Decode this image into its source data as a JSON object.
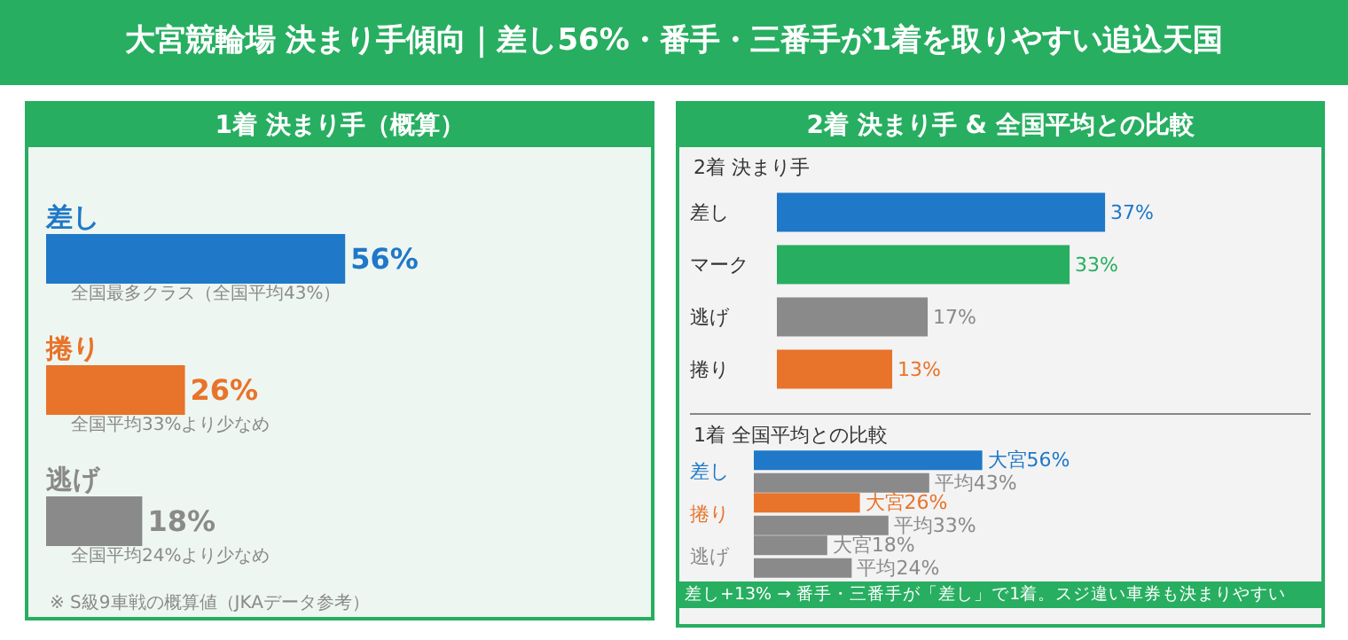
{
  "chart_data": [
    {
      "type": "bar",
      "orientation": "horizontal",
      "title": "大宮競輪場 決まり手傾向｜差し56%・番手・三番手が1着を取りやすい追込天国",
      "subtitle": "1着 決まり手（概算）",
      "categories": [
        "差し",
        "捲り",
        "逃げ"
      ],
      "values": [
        56,
        26,
        18
      ],
      "colors": [
        "#1f78c8",
        "#e8732a",
        "#8a8a8a"
      ],
      "value_labels": [
        "56%",
        "26%",
        "18%"
      ],
      "annotations": [
        "全国最多クラス（全国平均43%）",
        "全国平均33%より少なめ",
        "全国平均24%より少なめ",
        "※ S級9車戦の概算値（JKAデータ参考）"
      ]
    },
    {
      "type": "bar",
      "orientation": "horizontal",
      "title": "2着 決まり手 & 全国平均との比較",
      "subtitle": "2着 決まり手",
      "categories": [
        "差し",
        "マーク",
        "逃げ",
        "捲り"
      ],
      "values": [
        37,
        33,
        17,
        13
      ],
      "colors": [
        "#1f78c8",
        "#27ae60",
        "#8a8a8a",
        "#e8732a"
      ],
      "value_labels": [
        "37%",
        "33%",
        "17%",
        "13%"
      ]
    },
    {
      "type": "bar",
      "orientation": "horizontal",
      "title": "1着 全国平均との比較",
      "categories": [
        "差し",
        "捲り",
        "逃げ"
      ],
      "series": [
        {
          "colors": [
            "#1f78c8",
            "#e8732a",
            "#8a8a8a"
          ],
          "values": [
            56,
            26,
            18
          ],
          "value_labels": [
            "大宮56%",
            "大宮26%",
            "大宮18%"
          ]
        },
        {
          "color": "#8a8a8a",
          "values": [
            43,
            33,
            24
          ],
          "value_labels": [
            "平均43%",
            "平均33%",
            "平均24%"
          ]
        }
      ],
      "annotations": [
        "差し+13% → 番手・三番手が「差し」で1着。スジ違い車券も決まりやすい"
      ]
    }
  ]
}
